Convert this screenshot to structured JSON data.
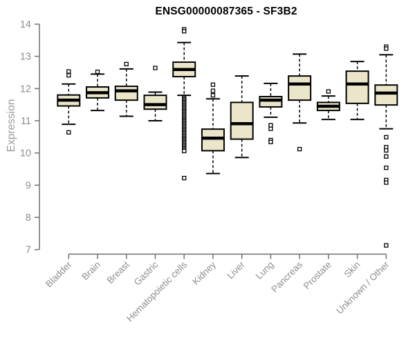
{
  "chart_data": {
    "type": "boxplot",
    "title": "ENSG00000087365 - SF3B2",
    "xlabel": "",
    "ylabel": "Expression",
    "ylim": [
      7,
      14
    ],
    "yticks": [
      7,
      8,
      9,
      10,
      11,
      12,
      13,
      14
    ],
    "grid": false,
    "legend": "none",
    "categories": [
      "Bladder",
      "Brain",
      "Breast",
      "Gastric",
      "Hematopoietic cells",
      "Kidney",
      "Liver",
      "Lung",
      "Pancreas",
      "Prostate",
      "Skin",
      "Unknown / Other"
    ],
    "series": [
      {
        "name": "Bladder",
        "whisker_low": 10.89,
        "q1": 11.46,
        "median": 11.64,
        "q3": 11.8,
        "whisker_high": 12.14,
        "outliers": [
          12.53,
          12.41,
          10.64
        ]
      },
      {
        "name": "Brain",
        "whisker_low": 11.32,
        "q1": 11.71,
        "median": 11.87,
        "q3": 12.05,
        "whisker_high": 12.45,
        "outliers": [
          12.52
        ]
      },
      {
        "name": "Breast",
        "whisker_low": 11.14,
        "q1": 11.64,
        "median": 11.93,
        "q3": 12.07,
        "whisker_high": 12.61,
        "outliers": [
          12.76
        ]
      },
      {
        "name": "Gastric",
        "whisker_low": 11.0,
        "q1": 11.36,
        "median": 11.5,
        "q3": 11.79,
        "whisker_high": 11.89,
        "outliers": [
          12.64
        ]
      },
      {
        "name": "Hematopoietic cells",
        "whisker_low": 11.79,
        "q1": 12.37,
        "median": 12.59,
        "q3": 12.82,
        "whisker_high": 13.43,
        "outliers": [
          13.84,
          13.78,
          11.7,
          11.66,
          11.62,
          11.58,
          11.54,
          11.5,
          11.46,
          11.42,
          11.38,
          11.34,
          11.3,
          11.26,
          11.22,
          11.18,
          11.14,
          11.1,
          11.06,
          11.02,
          10.98,
          10.94,
          10.9,
          10.86,
          10.82,
          10.78,
          10.74,
          10.7,
          10.66,
          10.62,
          10.58,
          10.54,
          10.5,
          10.46,
          10.42,
          10.38,
          10.34,
          10.3,
          10.26,
          10.22,
          10.18,
          10.14,
          10.1,
          10.06,
          9.22
        ]
      },
      {
        "name": "Kidney",
        "whisker_low": 9.36,
        "q1": 10.07,
        "median": 10.46,
        "q3": 10.74,
        "whisker_high": 11.68,
        "outliers": [
          12.12,
          11.93,
          11.79
        ]
      },
      {
        "name": "Liver",
        "whisker_low": 9.86,
        "q1": 10.43,
        "median": 10.91,
        "q3": 11.57,
        "whisker_high": 12.39,
        "outliers": []
      },
      {
        "name": "Lung",
        "whisker_low": 11.11,
        "q1": 11.43,
        "median": 11.64,
        "q3": 11.75,
        "whisker_high": 12.16,
        "outliers": [
          10.86,
          10.75,
          10.4,
          10.34
        ]
      },
      {
        "name": "Pancreas",
        "whisker_low": 10.93,
        "q1": 11.64,
        "median": 12.14,
        "q3": 12.39,
        "whisker_high": 13.07,
        "outliers": [
          10.12
        ]
      },
      {
        "name": "Prostate",
        "whisker_low": 11.04,
        "q1": 11.32,
        "median": 11.45,
        "q3": 11.57,
        "whisker_high": 11.77,
        "outliers": [
          11.91
        ]
      },
      {
        "name": "Skin",
        "whisker_low": 11.04,
        "q1": 11.54,
        "median": 12.14,
        "q3": 12.54,
        "whisker_high": 12.84,
        "outliers": []
      },
      {
        "name": "Unknown / Other",
        "whisker_low": 10.75,
        "q1": 11.49,
        "median": 11.86,
        "q3": 12.11,
        "whisker_high": 13.05,
        "outliers": [
          13.3,
          13.24,
          10.49,
          10.18,
          10.08,
          9.89,
          9.54,
          9.16,
          9.08,
          7.13
        ]
      }
    ],
    "colors": {
      "background": "#ffffff",
      "box_fill": "#ebe5c9",
      "box_border": "#000000",
      "median": "#000000",
      "whisker": "#000000",
      "outlier": "#000000",
      "axis": "#787878",
      "tick_label": "#8e8e8e",
      "title": "#000000",
      "ylabel_color": "#9a9a9a"
    }
  }
}
